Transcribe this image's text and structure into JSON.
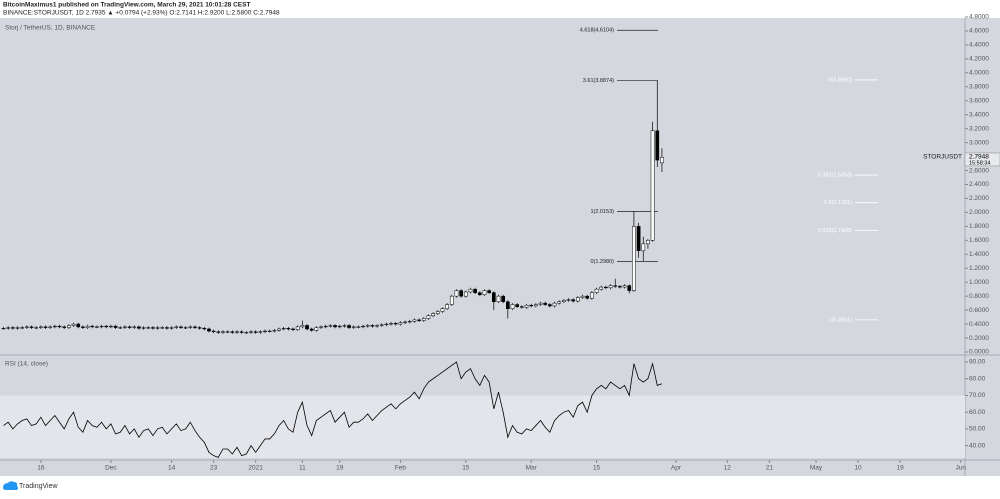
{
  "header": {
    "line1": "BitcoinMaximus1 published on TradingView.com, March 29, 2021 10:01:28 CEST",
    "line2": "BINANCE:STORJUSDT, 1D 2.7935 ▲ +0.0794 (+2.93%) O:2.7141 H:2.9200 L:2.5800 C:2.7948"
  },
  "chart_data": {
    "type": "candlestick",
    "title": "Storj / TetherUS, 1D, BINANCE",
    "up_color": "#ffffff",
    "down_color": "#000000",
    "x": [
      0,
      1,
      2,
      3,
      4,
      5,
      6,
      7,
      8,
      9,
      10,
      11,
      12,
      13,
      14,
      15,
      16,
      17,
      18,
      19,
      20,
      21,
      22,
      23,
      24,
      25,
      26,
      27,
      28,
      29,
      30,
      31,
      32,
      33,
      34,
      35,
      36,
      37,
      38,
      39,
      40,
      41,
      42,
      43,
      44,
      45,
      46,
      47,
      48,
      49,
      50,
      51,
      52,
      53,
      54,
      55,
      56,
      57,
      58,
      59,
      60,
      61,
      62,
      63,
      64,
      65,
      66,
      67,
      68,
      69,
      70,
      71,
      72,
      73,
      74,
      75,
      76,
      77,
      78,
      79,
      80,
      81,
      82,
      83,
      84,
      85,
      86,
      87,
      88,
      89,
      90,
      91,
      92,
      93,
      94,
      95,
      96,
      97,
      98,
      99,
      100,
      101,
      102,
      103,
      104,
      105,
      106,
      107,
      108,
      109,
      110,
      111,
      112,
      113,
      114,
      115,
      116,
      117,
      118,
      119,
      120,
      121,
      122,
      123,
      124,
      125,
      126,
      127,
      128,
      129,
      130,
      131,
      132,
      133,
      134,
      135,
      136,
      137,
      138,
      139,
      140,
      141
    ],
    "xlim": [
      -0.75,
      205.9
    ],
    "xticks": [
      {
        "value": 8,
        "label": "16"
      },
      {
        "value": 23,
        "label": "Dec"
      },
      {
        "value": 36,
        "label": "14"
      },
      {
        "value": 45,
        "label": "23"
      },
      {
        "value": 54,
        "label": "2021"
      },
      {
        "value": 64,
        "label": "11"
      },
      {
        "value": 72,
        "label": "19"
      },
      {
        "value": 85,
        "label": "Feb"
      },
      {
        "value": 99,
        "label": "15"
      },
      {
        "value": 113,
        "label": "Mar"
      },
      {
        "value": 127,
        "label": "15"
      },
      {
        "value": 144,
        "label": "Apr"
      },
      {
        "value": 155,
        "label": "12"
      },
      {
        "value": 164,
        "label": "21"
      },
      {
        "value": 174,
        "label": "May"
      },
      {
        "value": 183,
        "label": "10"
      },
      {
        "value": 192,
        "label": "19"
      },
      {
        "value": 205,
        "label": "Jun"
      }
    ],
    "open": [
      0.34,
      0.34,
      0.35,
      0.34,
      0.35,
      0.35,
      0.36,
      0.35,
      0.35,
      0.36,
      0.35,
      0.36,
      0.37,
      0.36,
      0.35,
      0.38,
      0.4,
      0.36,
      0.35,
      0.37,
      0.36,
      0.36,
      0.37,
      0.36,
      0.37,
      0.35,
      0.35,
      0.36,
      0.35,
      0.36,
      0.34,
      0.35,
      0.35,
      0.34,
      0.35,
      0.35,
      0.34,
      0.35,
      0.36,
      0.35,
      0.35,
      0.36,
      0.35,
      0.34,
      0.33,
      0.3,
      0.29,
      0.28,
      0.29,
      0.29,
      0.28,
      0.29,
      0.28,
      0.28,
      0.29,
      0.28,
      0.29,
      0.3,
      0.3,
      0.31,
      0.33,
      0.34,
      0.33,
      0.32,
      0.36,
      0.38,
      0.33,
      0.31,
      0.35,
      0.36,
      0.37,
      0.38,
      0.36,
      0.37,
      0.38,
      0.35,
      0.36,
      0.36,
      0.37,
      0.38,
      0.37,
      0.38,
      0.39,
      0.4,
      0.41,
      0.4,
      0.42,
      0.43,
      0.44,
      0.46,
      0.45,
      0.48,
      0.52,
      0.55,
      0.58,
      0.62,
      0.68,
      0.8,
      0.88,
      0.8,
      0.86,
      0.9,
      0.85,
      0.82,
      0.88,
      0.85,
      0.72,
      0.8,
      0.72,
      0.62,
      0.68,
      0.65,
      0.64,
      0.67,
      0.66,
      0.68,
      0.7,
      0.68,
      0.66,
      0.7,
      0.72,
      0.74,
      0.75,
      0.73,
      0.78,
      0.8,
      0.77,
      0.85,
      0.9,
      0.93,
      0.92,
      0.95,
      0.94,
      0.93,
      0.95,
      0.88,
      1.8,
      1.45,
      1.55,
      1.6,
      3.17,
      2.71
    ],
    "high": [
      0.36,
      0.37,
      0.37,
      0.37,
      0.37,
      0.38,
      0.38,
      0.37,
      0.38,
      0.38,
      0.38,
      0.39,
      0.39,
      0.38,
      0.4,
      0.42,
      0.42,
      0.38,
      0.39,
      0.39,
      0.38,
      0.39,
      0.39,
      0.39,
      0.39,
      0.37,
      0.38,
      0.38,
      0.38,
      0.38,
      0.37,
      0.37,
      0.37,
      0.37,
      0.37,
      0.37,
      0.37,
      0.38,
      0.38,
      0.37,
      0.38,
      0.38,
      0.37,
      0.36,
      0.35,
      0.32,
      0.31,
      0.31,
      0.31,
      0.31,
      0.31,
      0.31,
      0.3,
      0.31,
      0.31,
      0.31,
      0.32,
      0.32,
      0.33,
      0.35,
      0.36,
      0.36,
      0.35,
      0.38,
      0.45,
      0.4,
      0.35,
      0.37,
      0.38,
      0.39,
      0.4,
      0.4,
      0.39,
      0.4,
      0.4,
      0.38,
      0.38,
      0.39,
      0.4,
      0.4,
      0.4,
      0.41,
      0.42,
      0.43,
      0.43,
      0.44,
      0.45,
      0.46,
      0.48,
      0.48,
      0.5,
      0.54,
      0.57,
      0.6,
      0.64,
      0.7,
      0.82,
      0.9,
      0.9,
      0.88,
      0.92,
      0.92,
      0.87,
      0.9,
      0.9,
      0.87,
      0.82,
      0.82,
      0.74,
      0.7,
      0.7,
      0.67,
      0.69,
      0.69,
      0.7,
      0.72,
      0.72,
      0.7,
      0.72,
      0.74,
      0.76,
      0.77,
      0.77,
      0.8,
      0.82,
      0.82,
      0.87,
      0.92,
      0.95,
      0.95,
      0.97,
      1.05,
      0.96,
      0.97,
      0.97,
      2.02,
      1.85,
      1.65,
      1.62,
      3.3,
      3.89,
      2.92
    ],
    "low": [
      0.32,
      0.32,
      0.32,
      0.32,
      0.33,
      0.33,
      0.33,
      0.33,
      0.33,
      0.33,
      0.33,
      0.34,
      0.34,
      0.33,
      0.33,
      0.36,
      0.34,
      0.33,
      0.33,
      0.34,
      0.34,
      0.34,
      0.34,
      0.34,
      0.33,
      0.33,
      0.33,
      0.33,
      0.33,
      0.32,
      0.32,
      0.33,
      0.32,
      0.32,
      0.33,
      0.32,
      0.32,
      0.33,
      0.33,
      0.33,
      0.33,
      0.33,
      0.32,
      0.31,
      0.28,
      0.27,
      0.26,
      0.26,
      0.27,
      0.26,
      0.26,
      0.26,
      0.26,
      0.26,
      0.26,
      0.26,
      0.27,
      0.28,
      0.28,
      0.29,
      0.31,
      0.31,
      0.3,
      0.3,
      0.34,
      0.31,
      0.29,
      0.29,
      0.33,
      0.34,
      0.35,
      0.34,
      0.34,
      0.35,
      0.33,
      0.33,
      0.34,
      0.34,
      0.35,
      0.35,
      0.35,
      0.36,
      0.37,
      0.38,
      0.38,
      0.38,
      0.4,
      0.41,
      0.42,
      0.43,
      0.43,
      0.46,
      0.5,
      0.53,
      0.56,
      0.6,
      0.66,
      0.78,
      0.78,
      0.78,
      0.84,
      0.83,
      0.8,
      0.8,
      0.83,
      0.6,
      0.7,
      0.7,
      0.48,
      0.6,
      0.63,
      0.62,
      0.62,
      0.64,
      0.64,
      0.66,
      0.66,
      0.64,
      0.64,
      0.68,
      0.7,
      0.72,
      0.71,
      0.71,
      0.76,
      0.75,
      0.75,
      0.83,
      0.88,
      0.9,
      0.9,
      0.92,
      0.91,
      0.91,
      0.84,
      0.86,
      1.35,
      1.3,
      1.48,
      1.58,
      2.65,
      2.58
    ],
    "close": [
      0.34,
      0.35,
      0.34,
      0.35,
      0.35,
      0.36,
      0.35,
      0.35,
      0.36,
      0.35,
      0.36,
      0.37,
      0.36,
      0.35,
      0.38,
      0.4,
      0.36,
      0.35,
      0.37,
      0.36,
      0.36,
      0.37,
      0.36,
      0.37,
      0.35,
      0.35,
      0.36,
      0.35,
      0.36,
      0.34,
      0.35,
      0.35,
      0.34,
      0.35,
      0.35,
      0.34,
      0.35,
      0.36,
      0.35,
      0.35,
      0.36,
      0.35,
      0.34,
      0.33,
      0.3,
      0.29,
      0.28,
      0.29,
      0.29,
      0.28,
      0.29,
      0.28,
      0.28,
      0.29,
      0.28,
      0.29,
      0.3,
      0.3,
      0.31,
      0.33,
      0.34,
      0.33,
      0.32,
      0.36,
      0.38,
      0.33,
      0.31,
      0.35,
      0.36,
      0.37,
      0.38,
      0.36,
      0.37,
      0.38,
      0.35,
      0.36,
      0.36,
      0.37,
      0.38,
      0.37,
      0.38,
      0.39,
      0.4,
      0.41,
      0.4,
      0.42,
      0.43,
      0.44,
      0.46,
      0.45,
      0.48,
      0.52,
      0.55,
      0.58,
      0.62,
      0.68,
      0.8,
      0.88,
      0.8,
      0.86,
      0.9,
      0.85,
      0.82,
      0.88,
      0.85,
      0.72,
      0.8,
      0.72,
      0.62,
      0.68,
      0.65,
      0.64,
      0.67,
      0.66,
      0.68,
      0.7,
      0.68,
      0.66,
      0.7,
      0.72,
      0.74,
      0.75,
      0.73,
      0.78,
      0.8,
      0.77,
      0.85,
      0.9,
      0.93,
      0.92,
      0.95,
      0.94,
      0.93,
      0.95,
      0.88,
      1.8,
      1.45,
      1.55,
      1.6,
      3.17,
      2.75,
      2.79
    ],
    "ylim": [
      0,
      4.8
    ],
    "yticks": [
      {
        "value": 0,
        "label": "0.0000"
      },
      {
        "value": 0.2,
        "label": "0.2000"
      },
      {
        "value": 0.4,
        "label": "0.4000"
      },
      {
        "value": 0.6,
        "label": "0.6000"
      },
      {
        "value": 0.8,
        "label": "0.8000"
      },
      {
        "value": 1,
        "label": "1.0000"
      },
      {
        "value": 1.2,
        "label": "1.2000"
      },
      {
        "value": 1.4,
        "label": "1.4000"
      },
      {
        "value": 1.6,
        "label": "1.6000"
      },
      {
        "value": 1.8,
        "label": "1.8000"
      },
      {
        "value": 2,
        "label": "2.0000"
      },
      {
        "value": 2.2,
        "label": "2.2000"
      },
      {
        "value": 2.4,
        "label": "2.4000"
      },
      {
        "value": 2.6,
        "label": "2.6000"
      },
      {
        "value": 3,
        "label": "3.0000"
      },
      {
        "value": 3.2,
        "label": "3.2000"
      },
      {
        "value": 3.4,
        "label": "3.4000"
      },
      {
        "value": 3.6,
        "label": "3.6000"
      },
      {
        "value": 3.8,
        "label": "3.8000"
      },
      {
        "value": 4,
        "label": "4.0000"
      },
      {
        "value": 4.2,
        "label": "4.2000"
      },
      {
        "value": 4.4,
        "label": "4.4000"
      },
      {
        "value": 4.6,
        "label": "4.6000"
      },
      {
        "value": 4.8,
        "label": "4.8000"
      }
    ],
    "last_price": {
      "label": "STORJUSDT",
      "value": 2.7948,
      "countdown": "15:58:34"
    },
    "fib_extension": [
      {
        "value": 4.6104,
        "label": "4.618(4.6104)"
      },
      {
        "value": 3.8874,
        "label": "3.61(3.8874)"
      },
      {
        "value": 2.0153,
        "label": "1(2.0153)"
      },
      {
        "value": 1.298,
        "label": "0(1.2980)"
      }
    ],
    "fib_retracement": [
      {
        "value": 3.898,
        "label": "0(3.8980)"
      },
      {
        "value": 2.5353,
        "label": "0.382(2.5353)"
      },
      {
        "value": 2.1391,
        "label": "0.5(2.1391)"
      },
      {
        "value": 1.7428,
        "label": "0.618(1.7428)"
      },
      {
        "value": 0.4601,
        "label": "1(0.4601)"
      }
    ],
    "rsi": {
      "title": "RSI (14, close)",
      "color": "#000000",
      "values": [
        52,
        54,
        50,
        53,
        55,
        56,
        52,
        53,
        57,
        52,
        55,
        58,
        54,
        50,
        56,
        60,
        51,
        48,
        55,
        52,
        51,
        54,
        50,
        53,
        47,
        48,
        52,
        47,
        50,
        45,
        49,
        50,
        46,
        50,
        51,
        47,
        50,
        53,
        49,
        50,
        54,
        49,
        45,
        42,
        36,
        34,
        33,
        38,
        38,
        35,
        39,
        34,
        35,
        40,
        36,
        40,
        44,
        44,
        47,
        52,
        55,
        50,
        48,
        60,
        66,
        52,
        46,
        55,
        57,
        59,
        61,
        54,
        57,
        60,
        51,
        54,
        54,
        56,
        59,
        55,
        58,
        61,
        63,
        65,
        62,
        65,
        67,
        69,
        72,
        68,
        74,
        78,
        80,
        82,
        84,
        86,
        88,
        90,
        80,
        84,
        86,
        80,
        76,
        82,
        78,
        62,
        72,
        60,
        45,
        52,
        48,
        47,
        50,
        49,
        52,
        55,
        51,
        48,
        55,
        58,
        60,
        61,
        57,
        64,
        66,
        60,
        70,
        74,
        76,
        74,
        78,
        76,
        74,
        76,
        70,
        89,
        80,
        78,
        80,
        89,
        76,
        77
      ],
      "ylim": [
        32.6,
        92.4
      ],
      "band": [
        30,
        70
      ],
      "yticks": [
        {
          "value": 40,
          "label": "40.00"
        },
        {
          "value": 50,
          "label": "50.00"
        },
        {
          "value": 60,
          "label": "60.00"
        },
        {
          "value": 70,
          "label": "70.00"
        },
        {
          "value": 80,
          "label": "80.00"
        },
        {
          "value": 90,
          "label": "90.00"
        }
      ]
    }
  },
  "footer": "TradingView"
}
